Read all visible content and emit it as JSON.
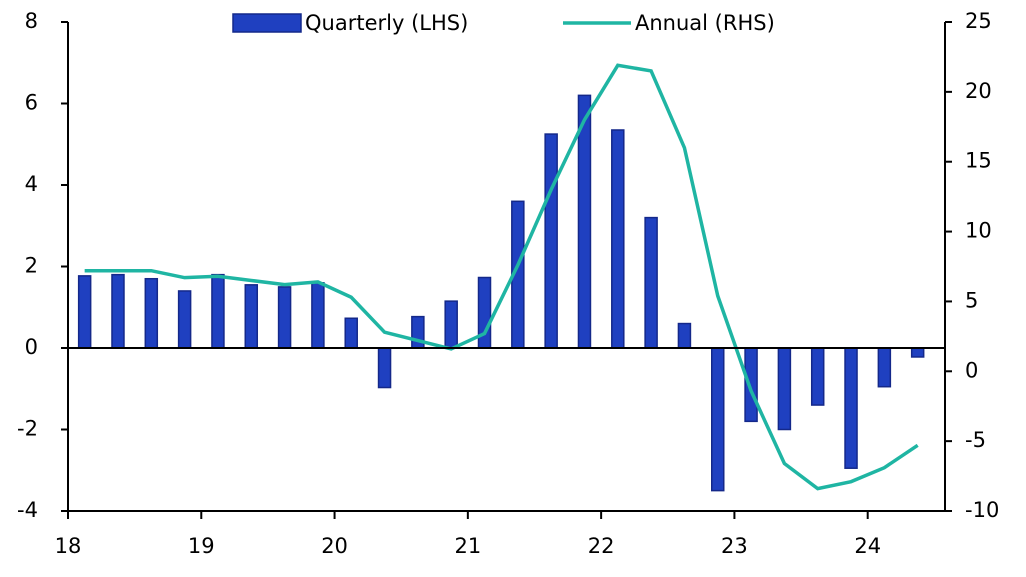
{
  "chart_data": {
    "type": "bar_line",
    "x": [
      18.125,
      18.375,
      18.625,
      18.875,
      19.125,
      19.375,
      19.625,
      19.875,
      20.125,
      20.375,
      20.625,
      20.875,
      21.125,
      21.375,
      21.625,
      21.875,
      22.125,
      22.375,
      22.625,
      22.875,
      23.125,
      23.375,
      23.625,
      23.875,
      24.125,
      24.375
    ],
    "series": [
      {
        "name": "Quarterly (LHS)",
        "type": "bar",
        "color": "#1f40c0",
        "values": [
          1.77,
          1.8,
          1.7,
          1.4,
          1.8,
          1.55,
          1.5,
          1.6,
          0.73,
          -0.97,
          0.77,
          1.15,
          1.73,
          3.6,
          5.25,
          6.2,
          5.35,
          3.2,
          0.6,
          -3.5,
          -1.8,
          -2.0,
          -1.4,
          -2.95,
          -0.95,
          -0.22
        ]
      },
      {
        "name": "Annual (RHS)",
        "type": "line",
        "axis": "y2",
        "color": "#1fb5a3",
        "values": [
          7.2,
          7.2,
          7.2,
          6.7,
          6.8,
          6.5,
          6.2,
          6.4,
          5.3,
          2.8,
          2.2,
          1.6,
          2.7,
          7.6,
          13,
          18,
          21.9,
          21.5,
          16,
          5.4,
          -1.4,
          -6.6,
          -8.4,
          -7.9,
          -6.9,
          -5.3
        ]
      }
    ],
    "xlim": [
      18,
      24.58
    ],
    "xticks": [
      18,
      19,
      20,
      21,
      22,
      23,
      24
    ],
    "ylim": [
      -4,
      8
    ],
    "yticks": [
      -4,
      -2,
      0,
      2,
      4,
      6,
      8
    ],
    "y2lim": [
      -10,
      25
    ],
    "y2ticks": [
      -10,
      -5,
      0,
      5,
      10,
      15,
      20,
      25
    ],
    "legend": "top"
  }
}
